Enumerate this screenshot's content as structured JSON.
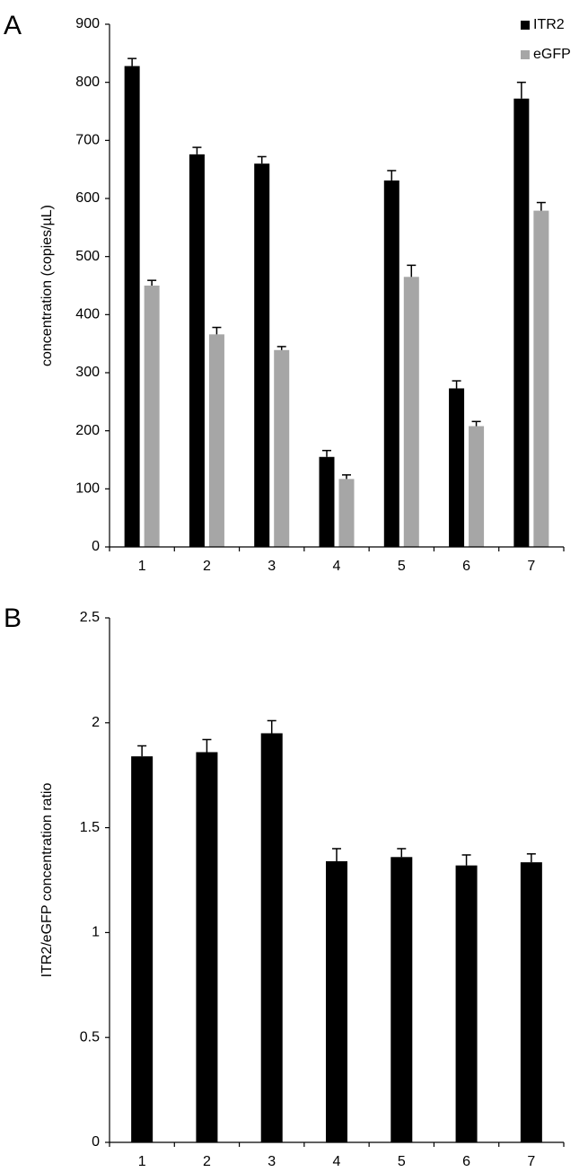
{
  "chart_data": [
    {
      "panel_label": "A",
      "type": "bar",
      "categories": [
        "1",
        "2",
        "3",
        "4",
        "5",
        "6",
        "7"
      ],
      "series": [
        {
          "name": "ITR2",
          "color": "#000000",
          "values": [
            828,
            676,
            660,
            155,
            631,
            273,
            772
          ],
          "errors": [
            13,
            12,
            12,
            11,
            17,
            13,
            28
          ]
        },
        {
          "name": "eGFP",
          "color": "#a6a6a6",
          "values": [
            450,
            366,
            339,
            117,
            465,
            208,
            579
          ],
          "errors": [
            9,
            12,
            6,
            7,
            20,
            8,
            14
          ]
        }
      ],
      "title": "",
      "xlabel": "",
      "ylabel": "concentration (copies/µL)",
      "ylim": [
        0,
        900
      ],
      "yticks": [
        "0",
        "100",
        "200",
        "300",
        "400",
        "500",
        "600",
        "700",
        "800",
        "900"
      ],
      "grid": false,
      "legend": "top-right"
    },
    {
      "panel_label": "B",
      "type": "bar",
      "categories": [
        "1",
        "2",
        "3",
        "4",
        "5",
        "6",
        "7"
      ],
      "series": [
        {
          "name": "ITR2/eGFP",
          "color": "#000000",
          "values": [
            1.84,
            1.86,
            1.95,
            1.34,
            1.36,
            1.32,
            1.335
          ],
          "errors": [
            0.05,
            0.06,
            0.06,
            0.06,
            0.04,
            0.05,
            0.04
          ]
        }
      ],
      "title": "",
      "xlabel": "",
      "ylabel": "ITR2/eGFP concentration ratio",
      "ylim": [
        0,
        2.5
      ],
      "yticks": [
        "0",
        "0.5",
        "1",
        "1.5",
        "2",
        "2.5"
      ],
      "grid": false,
      "legend": "none"
    }
  ]
}
